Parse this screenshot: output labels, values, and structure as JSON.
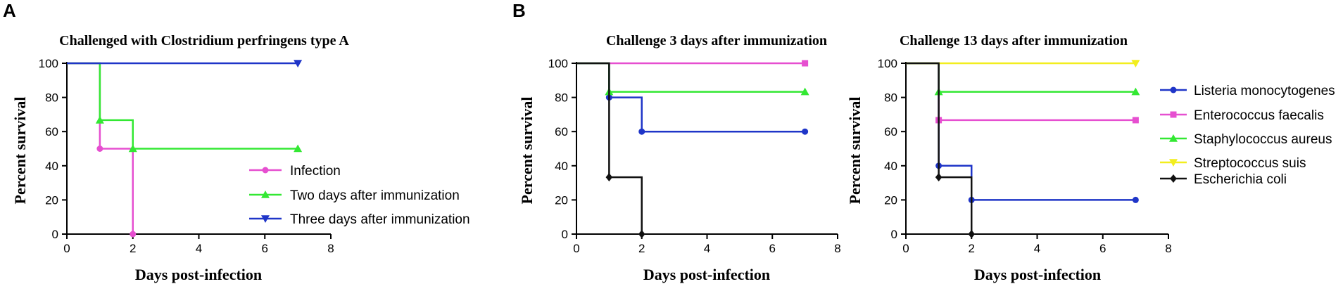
{
  "panel_letters": [
    "A",
    "B"
  ],
  "chart_data": [
    {
      "type": "line",
      "title": "Challenged with Clostridium perfringens type A",
      "xlabel": "Days post-infection",
      "ylabel": "Percent survival",
      "xlim": [
        0,
        8
      ],
      "ylim": [
        0,
        100
      ],
      "xticks": [
        0,
        2,
        4,
        6,
        8
      ],
      "yticks": [
        0,
        20,
        40,
        60,
        80,
        100
      ],
      "step": true,
      "legend_position": "inside-right",
      "series": [
        {
          "name": "Infection",
          "color": "#e64fd0",
          "marker": "circle",
          "x": [
            0,
            1,
            2
          ],
          "y": [
            100,
            50,
            0
          ]
        },
        {
          "name": "Two days after immunization",
          "color": "#33e833",
          "marker": "triangle-up",
          "x": [
            0,
            1,
            2,
            7
          ],
          "y": [
            100,
            66.7,
            50,
            50
          ]
        },
        {
          "name": "Three days after immunization",
          "color": "#1f35c8",
          "marker": "triangle-down",
          "x": [
            0,
            7
          ],
          "y": [
            100,
            100
          ]
        }
      ]
    },
    {
      "type": "line",
      "title": "Challenge 3 days after immunization",
      "xlabel": "Days post-infection",
      "ylabel": "Percent survival",
      "xlim": [
        0,
        8
      ],
      "ylim": [
        0,
        100
      ],
      "xticks": [
        0,
        2,
        4,
        6,
        8
      ],
      "yticks": [
        0,
        20,
        40,
        60,
        80,
        100
      ],
      "step": true,
      "series": [
        {
          "name": "Listeria monocytogenes",
          "color": "#1f35c8",
          "marker": "circle",
          "x": [
            0,
            1,
            2,
            7
          ],
          "y": [
            100,
            80,
            60,
            60
          ]
        },
        {
          "name": "Enterococcus faecalis",
          "color": "#e64fd0",
          "marker": "square",
          "x": [
            0,
            7
          ],
          "y": [
            100,
            100
          ]
        },
        {
          "name": "Staphylococcus aureus",
          "color": "#33e833",
          "marker": "triangle-up",
          "x": [
            0,
            1,
            7
          ],
          "y": [
            100,
            83.3,
            83.3
          ]
        },
        {
          "name": "Escherichia coli",
          "color": "#111111",
          "marker": "diamond",
          "x": [
            0,
            1,
            2
          ],
          "y": [
            100,
            33.3,
            0
          ]
        }
      ]
    },
    {
      "type": "line",
      "title": "Challenge 13 days after immunization",
      "xlabel": "Days post-infection",
      "ylabel": "Percent survival",
      "xlim": [
        0,
        8
      ],
      "ylim": [
        0,
        100
      ],
      "xticks": [
        0,
        2,
        4,
        6,
        8
      ],
      "yticks": [
        0,
        20,
        40,
        60,
        80,
        100
      ],
      "step": true,
      "legend_position": "outside-right",
      "series": [
        {
          "name": "Listeria monocytogenes",
          "color": "#1f35c8",
          "marker": "circle",
          "x": [
            0,
            1,
            2,
            7
          ],
          "y": [
            100,
            40,
            20,
            20
          ]
        },
        {
          "name": "Enterococcus faecalis",
          "color": "#e64fd0",
          "marker": "square",
          "x": [
            0,
            1,
            7
          ],
          "y": [
            100,
            66.7,
            66.7
          ]
        },
        {
          "name": "Staphylococcus aureus",
          "color": "#33e833",
          "marker": "triangle-up",
          "x": [
            0,
            1,
            7
          ],
          "y": [
            100,
            83.3,
            83.3
          ]
        },
        {
          "name": "Streptococcus suis",
          "color": "#f2ee1e",
          "marker": "triangle-down",
          "x": [
            0,
            7
          ],
          "y": [
            100,
            100
          ]
        },
        {
          "name": "Escherichia coli",
          "color": "#111111",
          "marker": "diamond",
          "x": [
            0,
            1,
            2
          ],
          "y": [
            100,
            33.3,
            0
          ]
        }
      ]
    }
  ]
}
